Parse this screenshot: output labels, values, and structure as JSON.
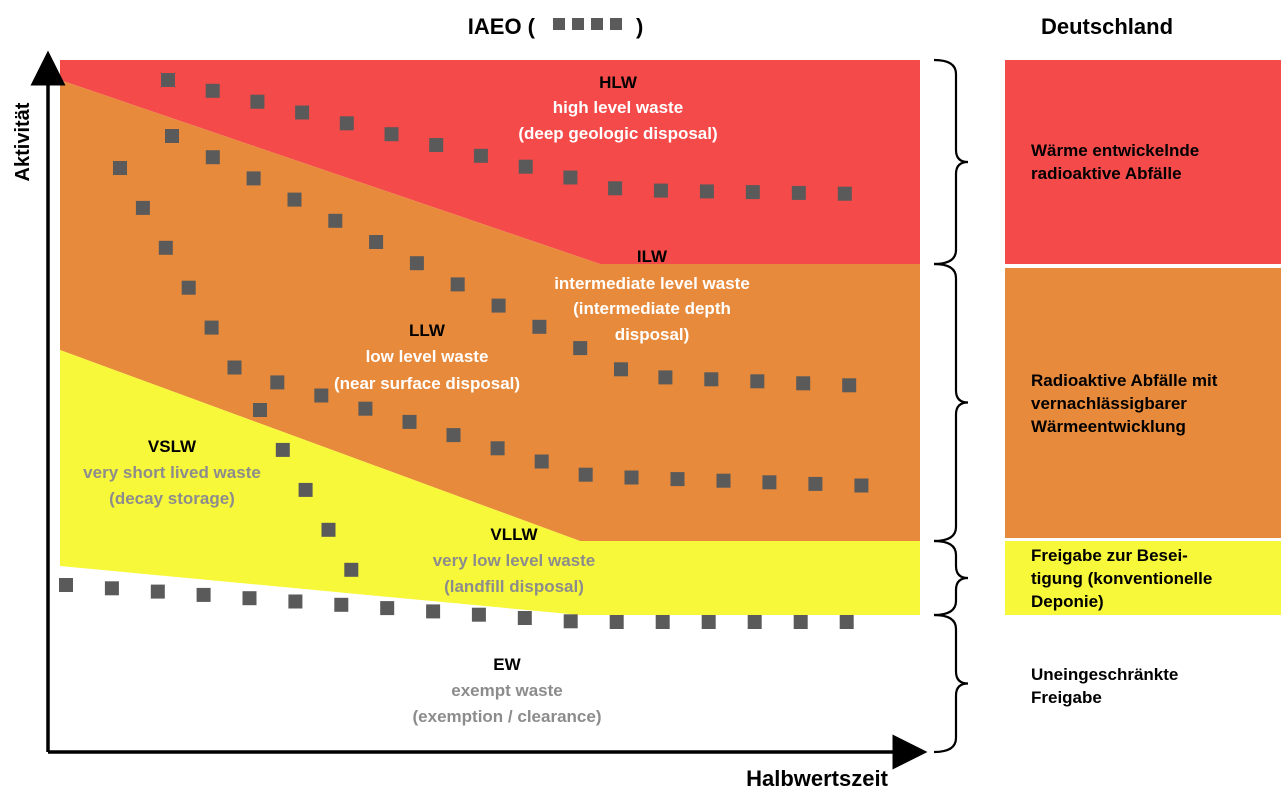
{
  "title": {
    "text": "IAEO (",
    "text_close": ")"
  },
  "germany_title": "Deutschland",
  "axes": {
    "y_label": "Aktivität",
    "x_label": "Halbwertszeit"
  },
  "colors": {
    "hlw": "#f54a4a",
    "ilw_llw": "#e88a3b",
    "vllw": "#f8f83a",
    "dots": "#5a5a5a",
    "white_text": "#ffffff",
    "grey_text": "#8c8c8c",
    "black_text": "#000000"
  },
  "classes": {
    "hlw": {
      "abbr": "HLW",
      "name": "high level waste",
      "desc": "(deep geologic disposal)"
    },
    "ilw": {
      "abbr": "ILW",
      "name": "intermediate level waste",
      "desc1": "(intermediate depth",
      "desc2": "disposal)"
    },
    "llw": {
      "abbr": "LLW",
      "name": "low level waste",
      "desc": "(near surface disposal)"
    },
    "vslw": {
      "abbr": "VSLW",
      "name": "very short lived waste",
      "desc": "(decay storage)"
    },
    "vllw": {
      "abbr": "VLLW",
      "name": "very low level waste",
      "desc": "(landfill disposal)"
    },
    "ew": {
      "abbr": "EW",
      "name": "exempt waste",
      "desc": "(exemption / clearance)"
    }
  },
  "germany": {
    "heat_generating": "Wärme entwickelnde\nradioaktive Abfälle",
    "negligible_heat": "Radioaktive Abfälle mit\nvernachlässigbarer\nWärmeentwicklung",
    "clearance_disposal": "Freigabe zur Besei-\ntigung (konventionelle\nDeponie)",
    "unrestricted_clearance": "Uneingeschränkte\nFreigabe"
  }
}
